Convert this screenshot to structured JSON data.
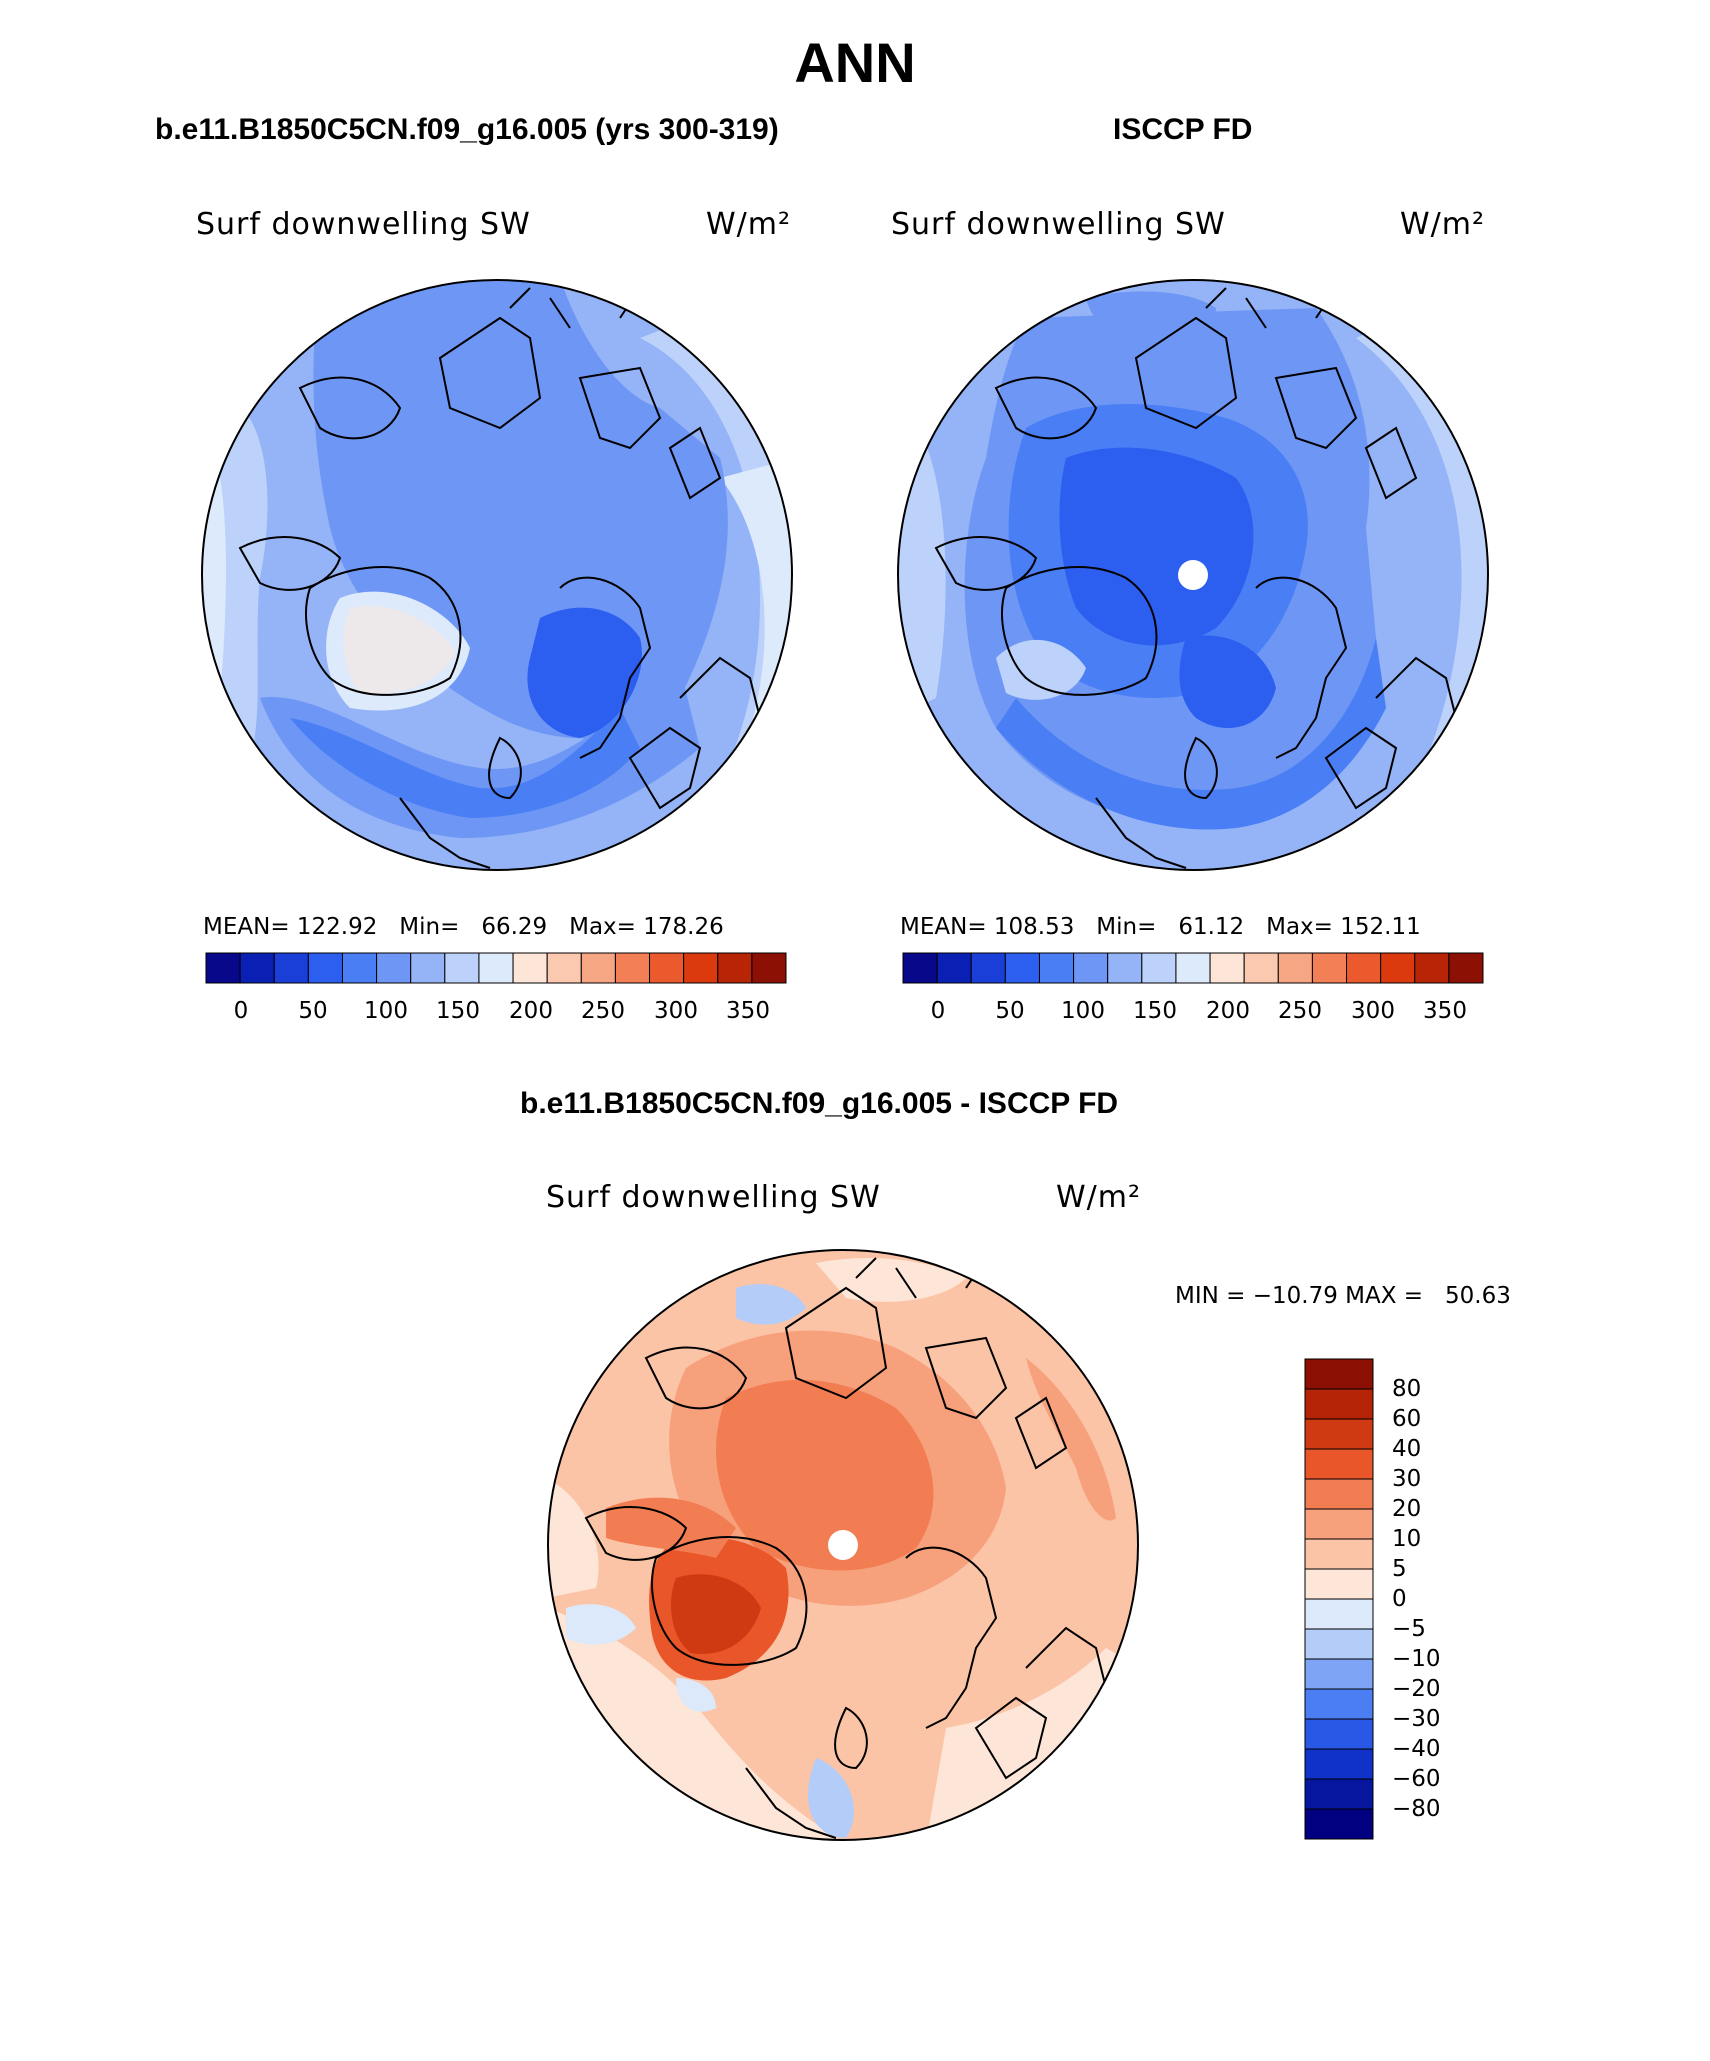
{
  "main_title": "ANN",
  "palette_abs": [
    "#08088a",
    "#0a1fb3",
    "#1a3fd9",
    "#2c5ff0",
    "#4a7ef5",
    "#6e97f5",
    "#94b4f7",
    "#bcd2fa",
    "#ddeafc",
    "#fde6d8",
    "#fbc9b0",
    "#f7a683",
    "#f27f55",
    "#eb5a2c",
    "#db3a0f",
    "#b82406",
    "#8c1004"
  ],
  "palette_diff": [
    "#000080",
    "#06169e",
    "#1132c8",
    "#2a58e6",
    "#4a7ef2",
    "#7ea5f5",
    "#b4cdf8",
    "#dbe9fb",
    "#fde6d8",
    "#fbc4a6",
    "#f7a07c",
    "#f27d52",
    "#e8562a",
    "#d03a12",
    "#b52406",
    "#8b0f02"
  ],
  "panels": [
    {
      "title": "b.e11.B1850C5CN.f09_g16.005 (yrs 300-319)",
      "var_label": "Surf downwelling SW",
      "units": "W/m²",
      "stats": "MEAN= 122.92   Min=   66.29   Max= 178.26",
      "ticks": [
        "0",
        "50",
        "100",
        "150",
        "200",
        "250",
        "300",
        "350"
      ]
    },
    {
      "title": "ISCCP FD",
      "var_label": "Surf downwelling SW",
      "units": "W/m²",
      "stats": "MEAN= 108.53   Min=   61.12   Max= 152.11",
      "ticks": [
        "0",
        "50",
        "100",
        "150",
        "200",
        "250",
        "300",
        "350"
      ]
    }
  ],
  "diff": {
    "title": "b.e11.B1850C5CN.f09_g16.005 - ISCCP FD",
    "var_label": "Surf downwelling SW",
    "units": "W/m²",
    "stats": "MIN = −10.79 MAX =   50.63",
    "ticks": [
      "80",
      "60",
      "40",
      "30",
      "20",
      "10",
      "5",
      "0",
      "−5",
      "−10",
      "−20",
      "−30",
      "−40",
      "−60",
      "−80"
    ]
  }
}
